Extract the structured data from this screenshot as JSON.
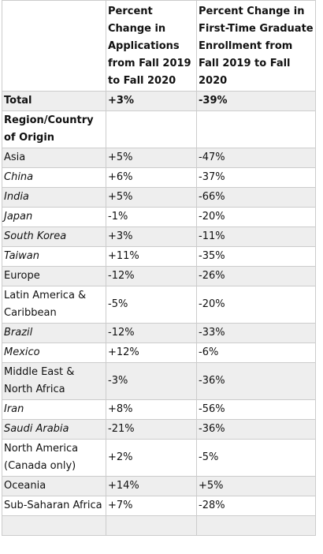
{
  "table": {
    "header": [
      "Percent Change in Applications from Fall 2019 to Fall 2020",
      "Percent Change in First-Time Graduate Enrollment from Fall 2019 to Fall 2020"
    ],
    "rows": [
      {
        "cells": [
          "Total",
          "+3%",
          "-39%"
        ],
        "style": "bold"
      },
      {
        "cells": [
          "Region/Country of Origin"
        ],
        "style": "bold"
      },
      {
        "cells": [
          "Asia",
          "+5%",
          "-47%"
        ],
        "style": "normal"
      },
      {
        "cells": [
          "China",
          "+6%",
          "-37%"
        ],
        "style": "italic"
      },
      {
        "cells": [
          "India",
          "+5%",
          "-66%"
        ],
        "style": "italic"
      },
      {
        "cells": [
          "Japan",
          "-1%",
          "-20%"
        ],
        "style": "italic"
      },
      {
        "cells": [
          "South Korea",
          "+3%",
          "-11%"
        ],
        "style": "italic"
      },
      {
        "cells": [
          "Taiwan",
          "+11%",
          "-35%"
        ],
        "style": "italic"
      },
      {
        "cells": [
          "Europe",
          "-12%",
          "-26%"
        ],
        "style": "normal"
      },
      {
        "cells": [
          "Latin America & Caribbean",
          "-5%",
          "-20%"
        ],
        "style": "normal"
      },
      {
        "cells": [
          "Brazil",
          "-12%",
          "-33%"
        ],
        "style": "italic"
      },
      {
        "cells": [
          "Mexico",
          "+12%",
          "-6%"
        ],
        "style": "italic"
      },
      {
        "cells": [
          "Middle East & North Africa",
          "-3%",
          "-36%"
        ],
        "style": "normal"
      },
      {
        "cells": [
          "Iran",
          "+8%",
          "-56%"
        ],
        "style": "italic"
      },
      {
        "cells": [
          "Saudi Arabia",
          "-21%",
          "-36%"
        ],
        "style": "italic"
      },
      {
        "cells": [
          "North America (Canada only)",
          "+2%",
          "-5%"
        ],
        "style": "normal"
      },
      {
        "cells": [
          "Oceania",
          "+14%",
          "+5%"
        ],
        "style": "normal"
      },
      {
        "cells": [
          "Sub-Saharan Africa",
          "+7%",
          "-28%"
        ],
        "style": "normal"
      }
    ]
  }
}
